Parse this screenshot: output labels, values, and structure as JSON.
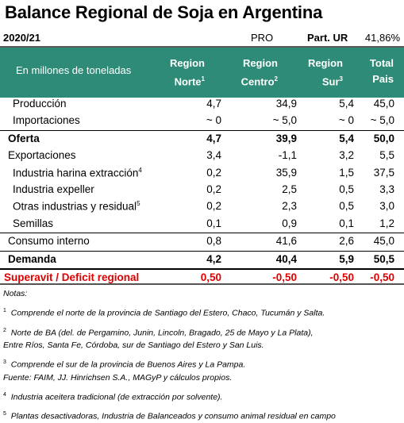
{
  "title": "Balance Regional de Soja en Argentina",
  "campaign": "2020/21",
  "pro_label": "PRO",
  "part_label": "Part. UR",
  "part_value": "41,86%",
  "header": {
    "unit": "En millones de toneladas",
    "col1_line1": "Region",
    "col1_line2": "Norte",
    "col1_sup": "1",
    "col2_line1": "Region",
    "col2_line2": "Centro",
    "col2_sup": "2",
    "col3_line1": "Region",
    "col3_line2": "Sur",
    "col3_sup": "3",
    "col4_line1": "Total",
    "col4_line2": "Pais"
  },
  "rows": [
    {
      "label": "Producción",
      "sup": "",
      "v": [
        "4,7",
        "34,9",
        "5,4",
        "45,0"
      ]
    },
    {
      "label": "Importaciones",
      "sup": "",
      "v": [
        "~ 0",
        "~ 5,0",
        "~ 0",
        "~ 5,0"
      ]
    },
    {
      "label": "Oferta",
      "sup": "",
      "v": [
        "4,7",
        "39,9",
        "5,4",
        "50,0"
      ]
    },
    {
      "label": "Exportaciones",
      "sup": "",
      "v": [
        "3,4",
        "-1,1",
        "3,2",
        "5,5"
      ]
    },
    {
      "label": "Industria harina extracción",
      "sup": "4",
      "v": [
        "0,2",
        "35,9",
        "1,5",
        "37,5"
      ]
    },
    {
      "label": "Industria expeller",
      "sup": "",
      "v": [
        "0,2",
        "2,5",
        "0,5",
        "3,3"
      ]
    },
    {
      "label": "Otras industrias y residual",
      "sup": "5",
      "v": [
        "0,2",
        "2,3",
        "0,5",
        "3,0"
      ]
    },
    {
      "label": "Semillas",
      "sup": "",
      "v": [
        "0,1",
        "0,9",
        "0,1",
        "1,2"
      ]
    },
    {
      "label": "Consumo interno",
      "sup": "",
      "v": [
        "0,8",
        "41,6",
        "2,6",
        "45,0"
      ]
    },
    {
      "label": "Demanda",
      "sup": "",
      "v": [
        "4,2",
        "40,4",
        "5,9",
        "50,5"
      ]
    },
    {
      "label": "Superavit / Deficit regional",
      "sup": "",
      "v": [
        "0,50",
        "-0,50",
        "-0,50",
        "-0,50"
      ]
    }
  ],
  "notes": {
    "heading": "Notas:",
    "n1": "Comprende el norte de la provincia de Santiago del Estero, Chaco, Tucumán y Salta.",
    "n2a": "Norte de BA (del. de Pergamino, Junin, Lincoln, Bragado, 25 de Mayo y La Plata),",
    "n2b": "Entre Ríos, Santa Fe, Córdoba, sur de Santiago del Estero y San Luis.",
    "n3": "Comprende el sur de la provincia de Buenos Aires y La Pampa.",
    "source": "Fuente: FAIM, JJ. Hinrichsen S.A., MAGyP y cálculos propios.",
    "n4": "Industria aceitera tradicional (de extracción por solvente).",
    "n5": "Plantas desactivadoras, Industria de Balanceados y consumo animal residual en campo",
    "s1": "1",
    "s2": "2",
    "s3": "3",
    "s4": "4",
    "s5": "5"
  },
  "colors": {
    "header_bg": "#2e8b77",
    "deficit": "#e00000"
  }
}
